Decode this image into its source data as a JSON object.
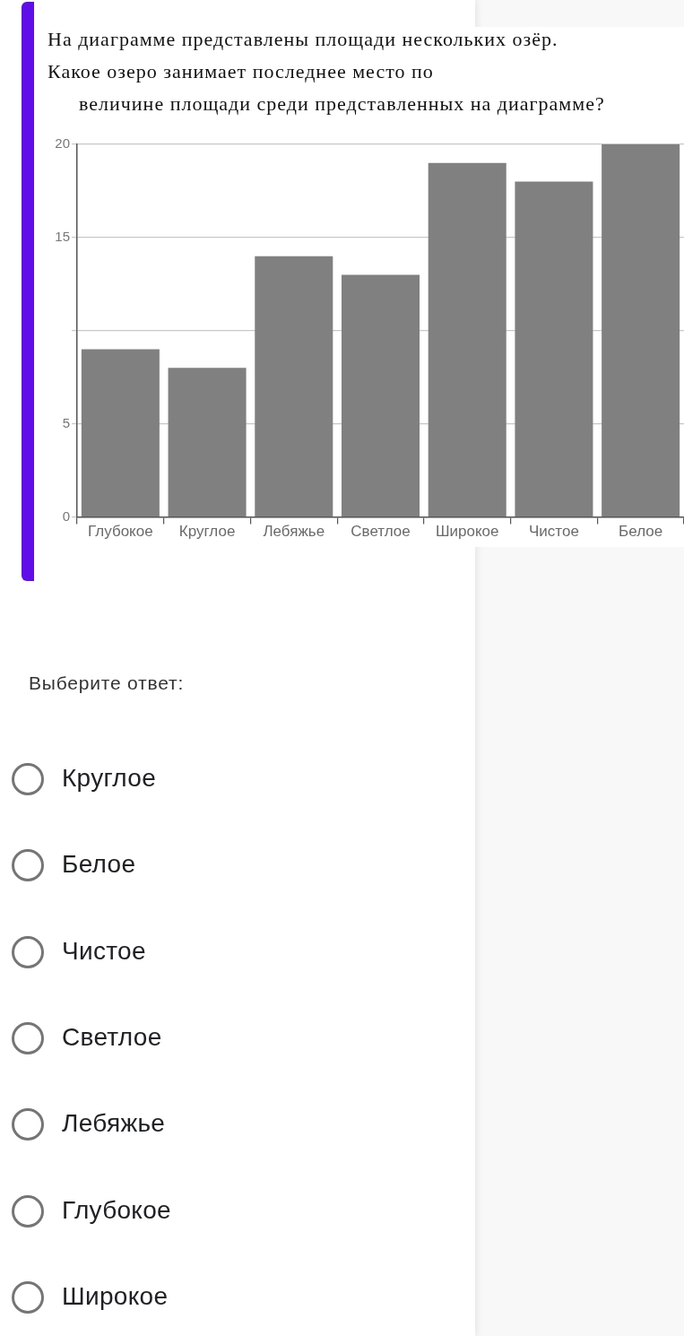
{
  "chart_data": {
    "type": "bar",
    "title": "На диаграмме представлены площади нескольких озёр.",
    "subtitle": "Какое озеро занимает последнее место по\nвеличине площади среди представленных на диаграмме?",
    "categories": [
      "Глубокое",
      "Круглое",
      "Лебяжье",
      "Светлое",
      "Широкое",
      "Чистое",
      "Белое"
    ],
    "values": [
      9,
      8,
      14,
      13,
      19,
      18,
      20
    ],
    "color": "#808080",
    "ylim": [
      0,
      20
    ],
    "yticks": [
      0,
      5,
      {
        "value": 10,
        "label": null
      },
      15,
      20
    ],
    "grid": "y",
    "annotations": [
      "Выберите ответ:",
      "Круглое",
      "Белое",
      "Чистое",
      "Светлое",
      "Лебяжье",
      "Глубокое",
      "Широкое"
    ]
  }
}
